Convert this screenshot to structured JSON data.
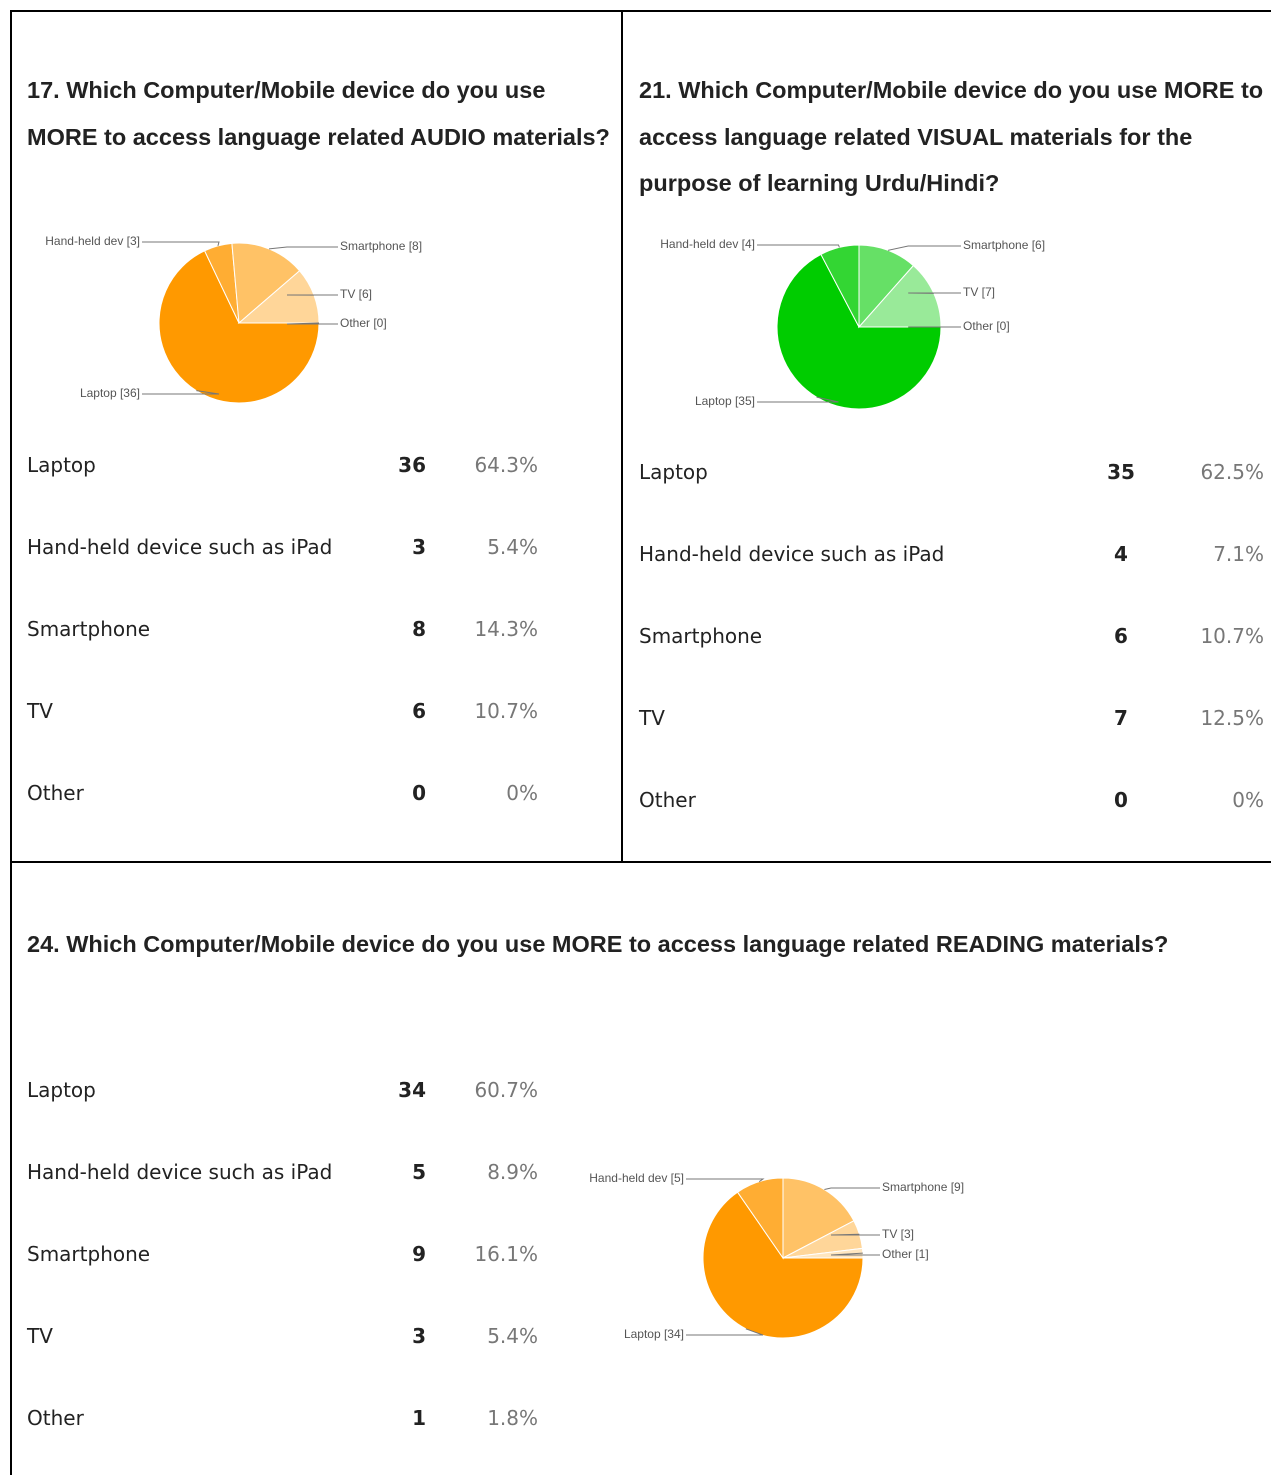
{
  "chart_data": [
    {
      "type": "pie",
      "title": "17. Which Computer/Mobile device do you use MORE to access language related AUDIO materials?",
      "categories": [
        "Laptop",
        "Hand-held device such as iPad",
        "Smartphone",
        "TV",
        "Other"
      ],
      "values": [
        36,
        3,
        8,
        6,
        0
      ],
      "percents": [
        64.3,
        5.4,
        14.3,
        10.7,
        0
      ],
      "percent_labels": [
        "64.3%",
        "5.4%",
        "14.3%",
        "10.7%",
        "0%"
      ],
      "slice_labels": [
        "Laptop [36]",
        "Hand-held dev [3]",
        "Smartphone [8]",
        "TV [6]",
        "Other [0]"
      ],
      "colors": [
        "#ff9900",
        "#ffad33",
        "#ffc266",
        "#ffd699",
        "#ffe6bf"
      ]
    },
    {
      "type": "pie",
      "title": "21. Which Computer/Mobile device do you use MORE to access language related VISUAL materials for the purpose of learning Urdu/Hindi?",
      "categories": [
        "Laptop",
        "Hand-held device such as iPad",
        "Smartphone",
        "TV",
        "Other"
      ],
      "values": [
        35,
        4,
        6,
        7,
        0
      ],
      "percents": [
        62.5,
        7.1,
        10.7,
        12.5,
        0
      ],
      "percent_labels": [
        "62.5%",
        "7.1%",
        "10.7%",
        "12.5%",
        "0%"
      ],
      "slice_labels": [
        "Laptop [35]",
        "Hand-held dev [4]",
        "Smartphone [6]",
        "TV [7]",
        "Other [0]"
      ],
      "colors": [
        "#00cc00",
        "#33d633",
        "#66e066",
        "#99ea99",
        "#ccf5cc"
      ]
    },
    {
      "type": "pie",
      "title": "24. Which Computer/Mobile device do you use MORE to access language related READING materials?",
      "categories": [
        "Laptop",
        "Hand-held device such as iPad",
        "Smartphone",
        "TV",
        "Other"
      ],
      "values": [
        34,
        5,
        9,
        3,
        1
      ],
      "percents": [
        60.7,
        8.9,
        16.1,
        5.4,
        1.8
      ],
      "percent_labels": [
        "60.7%",
        "8.9%",
        "16.1%",
        "5.4%",
        "1.8%"
      ],
      "slice_labels": [
        "Laptop [34]",
        "Hand-held dev [5]",
        "Smartphone [9]",
        "TV [3]",
        "Other [1]"
      ],
      "colors": [
        "#ff9900",
        "#ffad33",
        "#ffc266",
        "#ffd699",
        "#ffe6bf"
      ]
    }
  ]
}
